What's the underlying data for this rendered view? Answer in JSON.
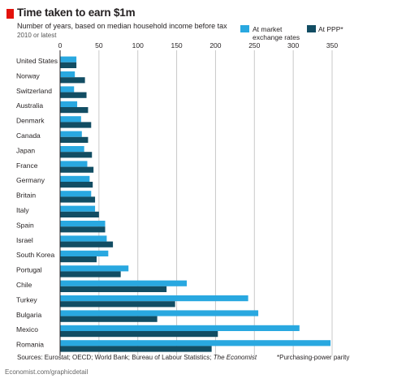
{
  "header": {
    "title": "Time taken to earn $1m",
    "subtitle": "Number of years, based on median household income before tax",
    "note": "2010 or latest"
  },
  "footer": {
    "sources_prefix": "Sources: Eurostat; OECD; World Bank; Bureau of Labour Statistics; ",
    "sources_italic": "The Economist",
    "footnote": "*Purchasing-power parity",
    "url": "Economist.com/graphicdetail"
  },
  "colors": {
    "market": "#29a8e0",
    "ppp": "#124d63",
    "brand_red": "#e3120b",
    "grid": "#c8c8c8"
  },
  "chart_data": {
    "type": "bar",
    "orientation": "horizontal",
    "title": "Time taken to earn $1m",
    "subtitle": "Number of years, based on median household income before tax",
    "xlim": [
      0,
      350
    ],
    "ticks": [
      0,
      50,
      100,
      150,
      200,
      250,
      300,
      350
    ],
    "grid": true,
    "legend_placement": "top-right",
    "categories": [
      "United States",
      "Norway",
      "Switzerland",
      "Australia",
      "Denmark",
      "Canada",
      "Japan",
      "France",
      "Germany",
      "Britain",
      "Italy",
      "Spain",
      "Israel",
      "South Korea",
      "Portugal",
      "Chile",
      "Turkey",
      "Bulgaria",
      "Mexico",
      "Romania"
    ],
    "series": [
      {
        "name": "At market exchange rates",
        "color": "#29a8e0",
        "values": [
          21,
          19,
          18,
          22,
          27,
          28,
          31,
          35,
          38,
          40,
          45,
          58,
          60,
          62,
          88,
          163,
          242,
          255,
          308,
          348
        ]
      },
      {
        "name": "At PPP*",
        "color": "#124d63",
        "values": [
          21,
          32,
          34,
          36,
          40,
          36,
          41,
          43,
          42,
          45,
          50,
          58,
          68,
          47,
          78,
          137,
          148,
          125,
          203,
          195
        ]
      }
    ]
  }
}
